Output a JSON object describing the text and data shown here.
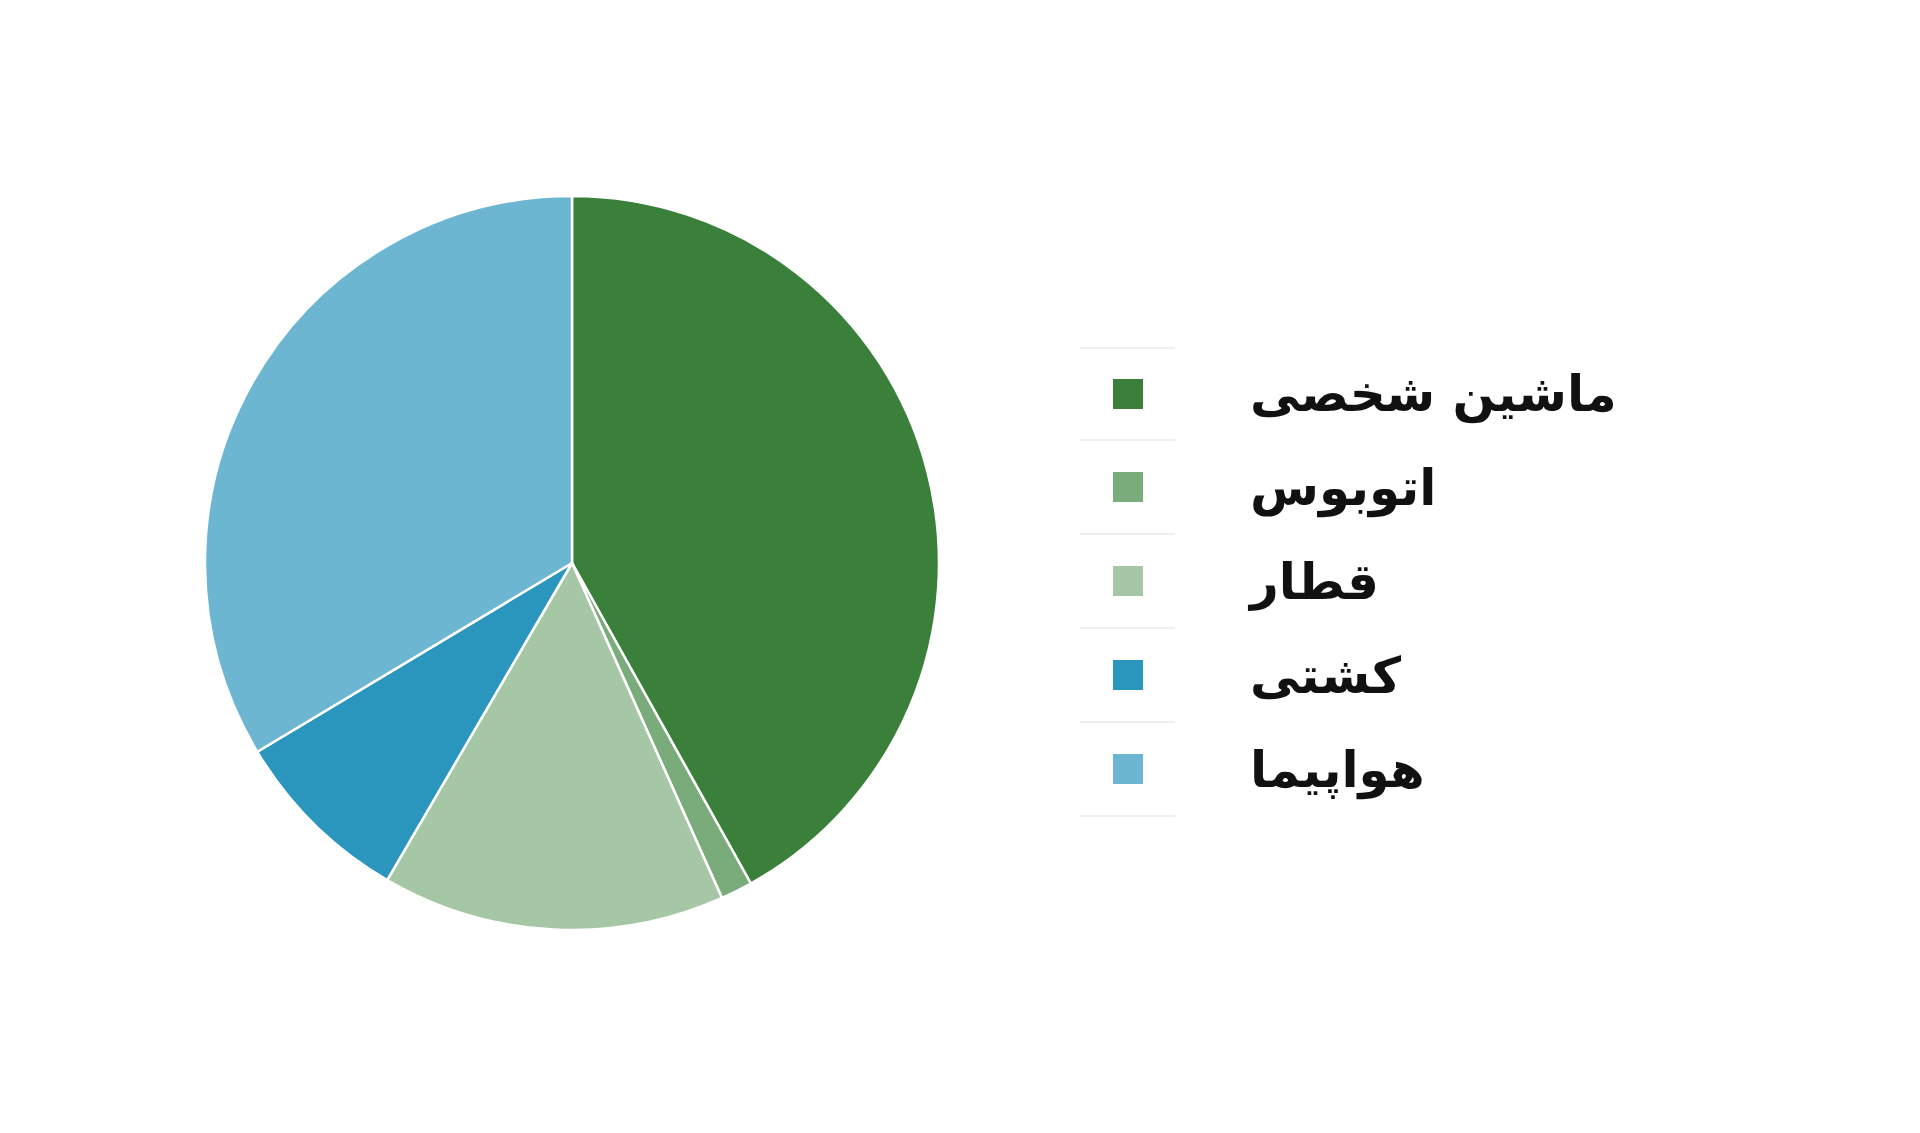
{
  "chart_data": {
    "type": "pie",
    "categories": [
      "ماشین شخصی",
      "اتوبوس",
      "قطار",
      "کشتی",
      "هواپیما"
    ],
    "values": [
      41.9,
      1.4,
      15.1,
      8.0,
      33.6
    ],
    "colors": [
      "#3a803b",
      "#7aab7a",
      "#a6c7a6",
      "#2a95bd",
      "#6cb6d2"
    ],
    "legend": "right"
  }
}
